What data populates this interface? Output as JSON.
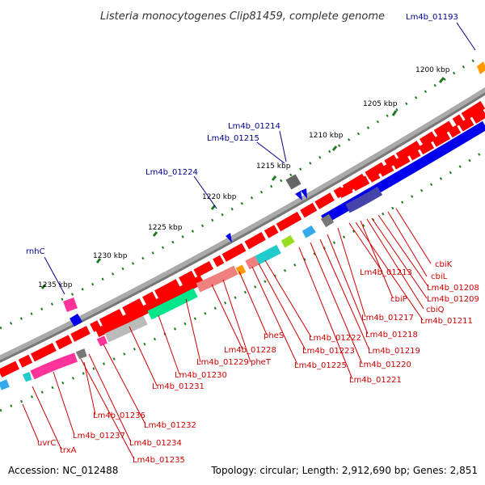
{
  "title": "Listeria monocytogenes Clip81459, complete genome",
  "footer": {
    "accession": "Accession: NC_012488",
    "stats": "Topology: circular; Length: 2,912,690 bp; Genes: 2,851"
  },
  "colors": {
    "label_blue": "#00008b",
    "label_red": "#cc0000",
    "tick_green": "#1f7a1f",
    "backbone": "#888888",
    "gene_red": "#ff0000",
    "gene_blue": "#0000ee",
    "pink": "#ff3399",
    "green": "#00e68a",
    "light_red": "#f08080",
    "grey": "#bbbbbb",
    "cyan": "#22cccc",
    "lime": "#99dd22",
    "orange": "#ff9900",
    "sky": "#33aaee",
    "dark_grey": "#777777"
  },
  "ticks": [
    {
      "label": "1200 kbp"
    },
    {
      "label": "1205 kbp"
    },
    {
      "label": "1210 kbp"
    },
    {
      "label": "1215 kbp"
    },
    {
      "label": "1220 kbp"
    },
    {
      "label": "1225 kbp"
    },
    {
      "label": "1230 kbp"
    },
    {
      "label": "1235 kbp"
    }
  ],
  "outer_labels": [
    {
      "text": "Lm4b_01193"
    },
    {
      "text": "Lm4b_01214"
    },
    {
      "text": "Lm4b_01215"
    },
    {
      "text": "Lm4b_01224"
    },
    {
      "text": "rnhC"
    }
  ],
  "inner_labels": [
    {
      "text": "cbiK"
    },
    {
      "text": "cbiL"
    },
    {
      "text": "Lm4b_01213"
    },
    {
      "text": "Lm4b_01208"
    },
    {
      "text": "Lm4b_01209"
    },
    {
      "text": "cbiP"
    },
    {
      "text": "cbiQ"
    },
    {
      "text": "Lm4b_01217"
    },
    {
      "text": "Lm4b_01211"
    },
    {
      "text": "Lm4b_01218"
    },
    {
      "text": "Lm4b_01222"
    },
    {
      "text": "pheS"
    },
    {
      "text": "Lm4b_01219"
    },
    {
      "text": "Lm4b_01223"
    },
    {
      "text": "Lm4b_01228"
    },
    {
      "text": "Lm4b_01220"
    },
    {
      "text": "Lm4b_01229"
    },
    {
      "text": "pheT"
    },
    {
      "text": "Lm4b_01225"
    },
    {
      "text": "Lm4b_01221"
    },
    {
      "text": "Lm4b_01230"
    },
    {
      "text": "Lm4b_01231"
    },
    {
      "text": "Lm4b_01236"
    },
    {
      "text": "Lm4b_01232"
    },
    {
      "text": "Lm4b_01237"
    },
    {
      "text": "Lm4b_01234"
    },
    {
      "text": "uvrC"
    },
    {
      "text": "trxA"
    },
    {
      "text": "Lm4b_01235"
    }
  ]
}
